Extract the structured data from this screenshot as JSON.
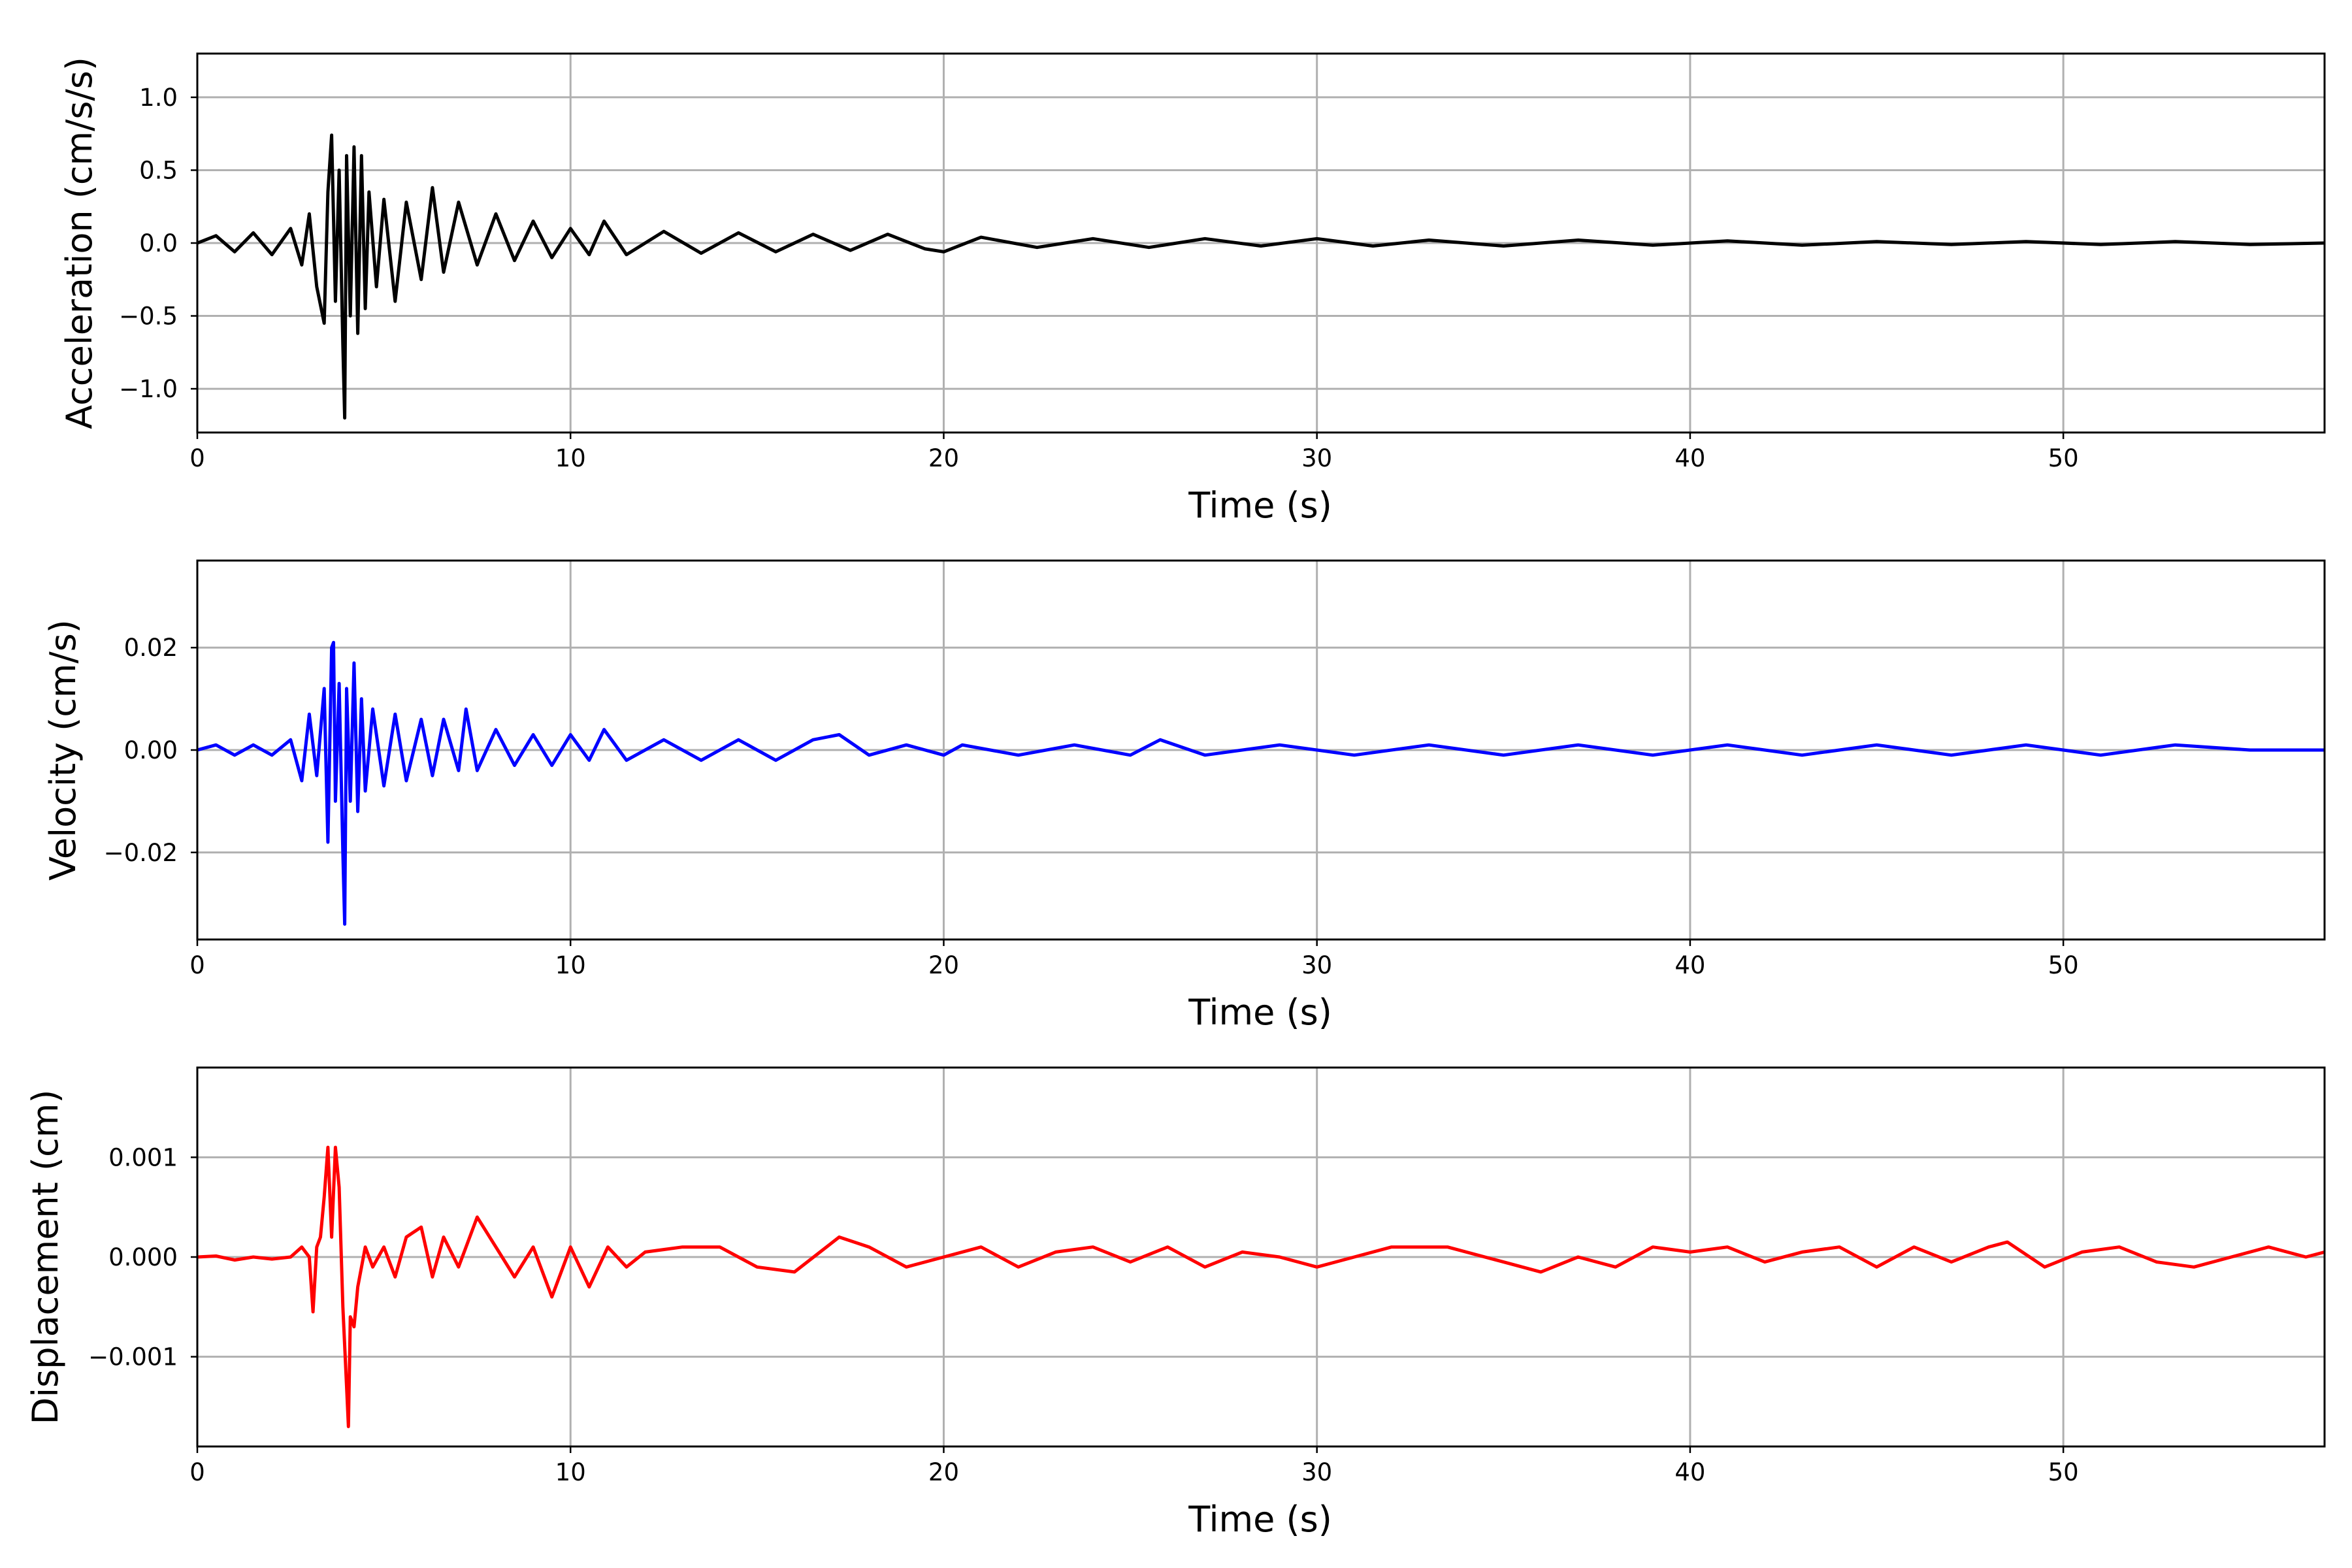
{
  "chart_data": [
    {
      "type": "line",
      "title": "",
      "xlabel": "Time (s)",
      "ylabel": "Acceleration (cm/s/s)",
      "xlim": [
        0,
        57
      ],
      "ylim": [
        -1.3,
        1.3
      ],
      "xticks": [
        0,
        10,
        20,
        30,
        40,
        50
      ],
      "yticks": [
        -1.0,
        -0.5,
        0.0,
        0.5,
        1.0
      ],
      "ytick_labels": [
        "−1.0",
        "−0.5",
        "0.0",
        "0.5",
        "1.0"
      ],
      "grid": true,
      "color": "#000000",
      "series": [
        {
          "x": [
            0,
            0.5,
            1.0,
            1.5,
            2.0,
            2.5,
            2.8,
            3.0,
            3.2,
            3.4,
            3.5,
            3.6,
            3.7,
            3.8,
            3.9,
            3.95,
            4.0,
            4.1,
            4.2,
            4.3,
            4.4,
            4.5,
            4.6,
            4.8,
            5.0,
            5.3,
            5.6,
            6.0,
            6.3,
            6.6,
            7.0,
            7.5,
            8.0,
            8.5,
            9.0,
            9.5,
            10.0,
            10.5,
            10.9,
            11.5,
            12.5,
            13.5,
            14.5,
            15.5,
            16.5,
            17.5,
            18.5,
            19.5,
            20.0,
            21.0,
            22.5,
            24.0,
            25.5,
            27.0,
            28.5,
            30.0,
            31.5,
            33.0,
            35.0,
            37.0,
            39.0,
            41.0,
            43.0,
            45.0,
            47.0,
            49.0,
            51.0,
            53.0,
            55.0,
            57.0
          ],
          "y": [
            0.0,
            0.05,
            -0.06,
            0.07,
            -0.08,
            0.1,
            -0.15,
            0.2,
            -0.3,
            -0.55,
            0.35,
            0.74,
            -0.4,
            0.5,
            -0.7,
            -1.2,
            0.6,
            -0.5,
            0.66,
            -0.62,
            0.6,
            -0.45,
            0.35,
            -0.3,
            0.3,
            -0.4,
            0.28,
            -0.25,
            0.38,
            -0.2,
            0.28,
            -0.15,
            0.2,
            -0.12,
            0.15,
            -0.1,
            0.1,
            -0.08,
            0.15,
            -0.08,
            0.08,
            -0.07,
            0.07,
            -0.06,
            0.06,
            -0.05,
            0.06,
            -0.04,
            -0.06,
            0.04,
            -0.03,
            0.03,
            -0.03,
            0.03,
            -0.02,
            0.03,
            -0.02,
            0.02,
            -0.02,
            0.02,
            -0.015,
            0.015,
            -0.015,
            0.01,
            -0.01,
            0.01,
            -0.01,
            0.01,
            -0.01,
            0.0
          ]
        }
      ]
    },
    {
      "type": "line",
      "title": "",
      "xlabel": "Time (s)",
      "ylabel": "Velocity (cm/s)",
      "xlim": [
        0,
        57
      ],
      "ylim": [
        -0.037,
        0.037
      ],
      "xticks": [
        0,
        10,
        20,
        30,
        40,
        50
      ],
      "yticks": [
        -0.02,
        0.0,
        0.02
      ],
      "ytick_labels": [
        "−0.02",
        "0.00",
        "0.02"
      ],
      "grid": true,
      "color": "#0000ff",
      "series": [
        {
          "x": [
            0,
            0.5,
            1.0,
            1.5,
            2.0,
            2.5,
            2.8,
            3.0,
            3.2,
            3.4,
            3.5,
            3.6,
            3.65,
            3.7,
            3.8,
            3.9,
            3.95,
            4.0,
            4.1,
            4.2,
            4.3,
            4.4,
            4.5,
            4.7,
            5.0,
            5.3,
            5.6,
            6.0,
            6.3,
            6.6,
            7.0,
            7.2,
            7.5,
            8.0,
            8.5,
            9.0,
            9.5,
            10.0,
            10.5,
            10.9,
            11.5,
            12.5,
            13.5,
            14.5,
            15.5,
            16.5,
            17.2,
            18.0,
            19.0,
            20.0,
            20.5,
            22.0,
            23.5,
            25.0,
            25.8,
            27.0,
            29.0,
            31.0,
            33.0,
            35.0,
            37.0,
            39.0,
            41.0,
            43.0,
            45.0,
            47.0,
            49.0,
            51.0,
            53.0,
            55.0,
            57.0
          ],
          "y": [
            0.0,
            0.001,
            -0.001,
            0.001,
            -0.001,
            0.002,
            -0.006,
            0.007,
            -0.005,
            0.012,
            -0.018,
            0.02,
            0.021,
            -0.01,
            0.013,
            -0.02,
            -0.034,
            0.012,
            -0.01,
            0.017,
            -0.012,
            0.01,
            -0.008,
            0.008,
            -0.007,
            0.007,
            -0.006,
            0.006,
            -0.005,
            0.006,
            -0.004,
            0.008,
            -0.004,
            0.004,
            -0.003,
            0.003,
            -0.003,
            0.003,
            -0.002,
            0.004,
            -0.002,
            0.002,
            -0.002,
            0.002,
            -0.002,
            0.002,
            0.003,
            -0.001,
            0.001,
            -0.001,
            0.001,
            -0.001,
            0.001,
            -0.001,
            0.002,
            -0.001,
            0.001,
            -0.001,
            0.001,
            -0.001,
            0.001,
            -0.001,
            0.001,
            -0.001,
            0.001,
            -0.001,
            0.001,
            -0.001,
            0.001,
            0.0,
            0.0
          ]
        }
      ]
    },
    {
      "type": "line",
      "title": "",
      "xlabel": "Time (s)",
      "ylabel": "Displacement (cm)",
      "xlim": [
        0,
        57
      ],
      "ylim": [
        -0.0019,
        0.0019
      ],
      "xticks": [
        0,
        10,
        20,
        30,
        40,
        50
      ],
      "yticks": [
        -0.001,
        0.0,
        0.001
      ],
      "ytick_labels": [
        "−0.001",
        "0.000",
        "0.001"
      ],
      "grid": true,
      "color": "#ff0000",
      "series": [
        {
          "x": [
            0,
            0.5,
            1.0,
            1.5,
            2.0,
            2.5,
            2.8,
            3.0,
            3.1,
            3.2,
            3.3,
            3.4,
            3.5,
            3.6,
            3.7,
            3.8,
            3.9,
            4.0,
            4.05,
            4.1,
            4.2,
            4.3,
            4.5,
            4.7,
            5.0,
            5.3,
            5.6,
            6.0,
            6.3,
            6.6,
            7.0,
            7.5,
            8.0,
            8.5,
            9.0,
            9.5,
            10.0,
            10.5,
            11.0,
            11.5,
            12.0,
            13.0,
            14.0,
            15.0,
            16.0,
            17.2,
            18.0,
            19.0,
            20.0,
            21.0,
            22.0,
            23.0,
            24.0,
            25.0,
            26.0,
            27.0,
            28.0,
            29.0,
            30.0,
            31.0,
            32.0,
            33.5,
            35.0,
            36.0,
            37.0,
            38.0,
            39.0,
            40.0,
            41.0,
            42.0,
            43.0,
            44.0,
            45.0,
            46.0,
            47.0,
            48.0,
            48.5,
            49.5,
            50.5,
            51.5,
            52.5,
            53.5,
            54.5,
            55.5,
            56.5,
            57.0
          ],
          "y": [
            0.0,
            1e-05,
            -3e-05,
            0.0,
            -2e-05,
            0.0,
            0.0001,
            0.0,
            -0.00055,
            0.0001,
            0.0002,
            0.0006,
            0.0011,
            0.0002,
            0.0011,
            0.0007,
            -0.0005,
            -0.0013,
            -0.0017,
            -0.0006,
            -0.0007,
            -0.0003,
            0.0001,
            -0.0001,
            0.0001,
            -0.0002,
            0.0002,
            0.0003,
            -0.0002,
            0.0002,
            -0.0001,
            0.0004,
            0.0001,
            -0.0002,
            0.0001,
            -0.0004,
            0.0001,
            -0.0003,
            0.0001,
            -0.0001,
            5e-05,
            0.0001,
            0.0001,
            -0.0001,
            -0.00015,
            0.0002,
            0.0001,
            -0.0001,
            0.0,
            0.0001,
            -0.0001,
            5e-05,
            0.0001,
            -5e-05,
            0.0001,
            -0.0001,
            5e-05,
            0.0,
            -0.0001,
            0.0,
            0.0001,
            0.0001,
            -5e-05,
            -0.00015,
            0.0,
            -0.0001,
            0.0001,
            5e-05,
            0.0001,
            -5e-05,
            5e-05,
            0.0001,
            -0.0001,
            0.0001,
            -5e-05,
            0.0001,
            0.00015,
            -0.0001,
            5e-05,
            0.0001,
            -5e-05,
            -0.0001,
            0.0,
            0.0001,
            0.0,
            5e-05
          ]
        }
      ]
    }
  ]
}
